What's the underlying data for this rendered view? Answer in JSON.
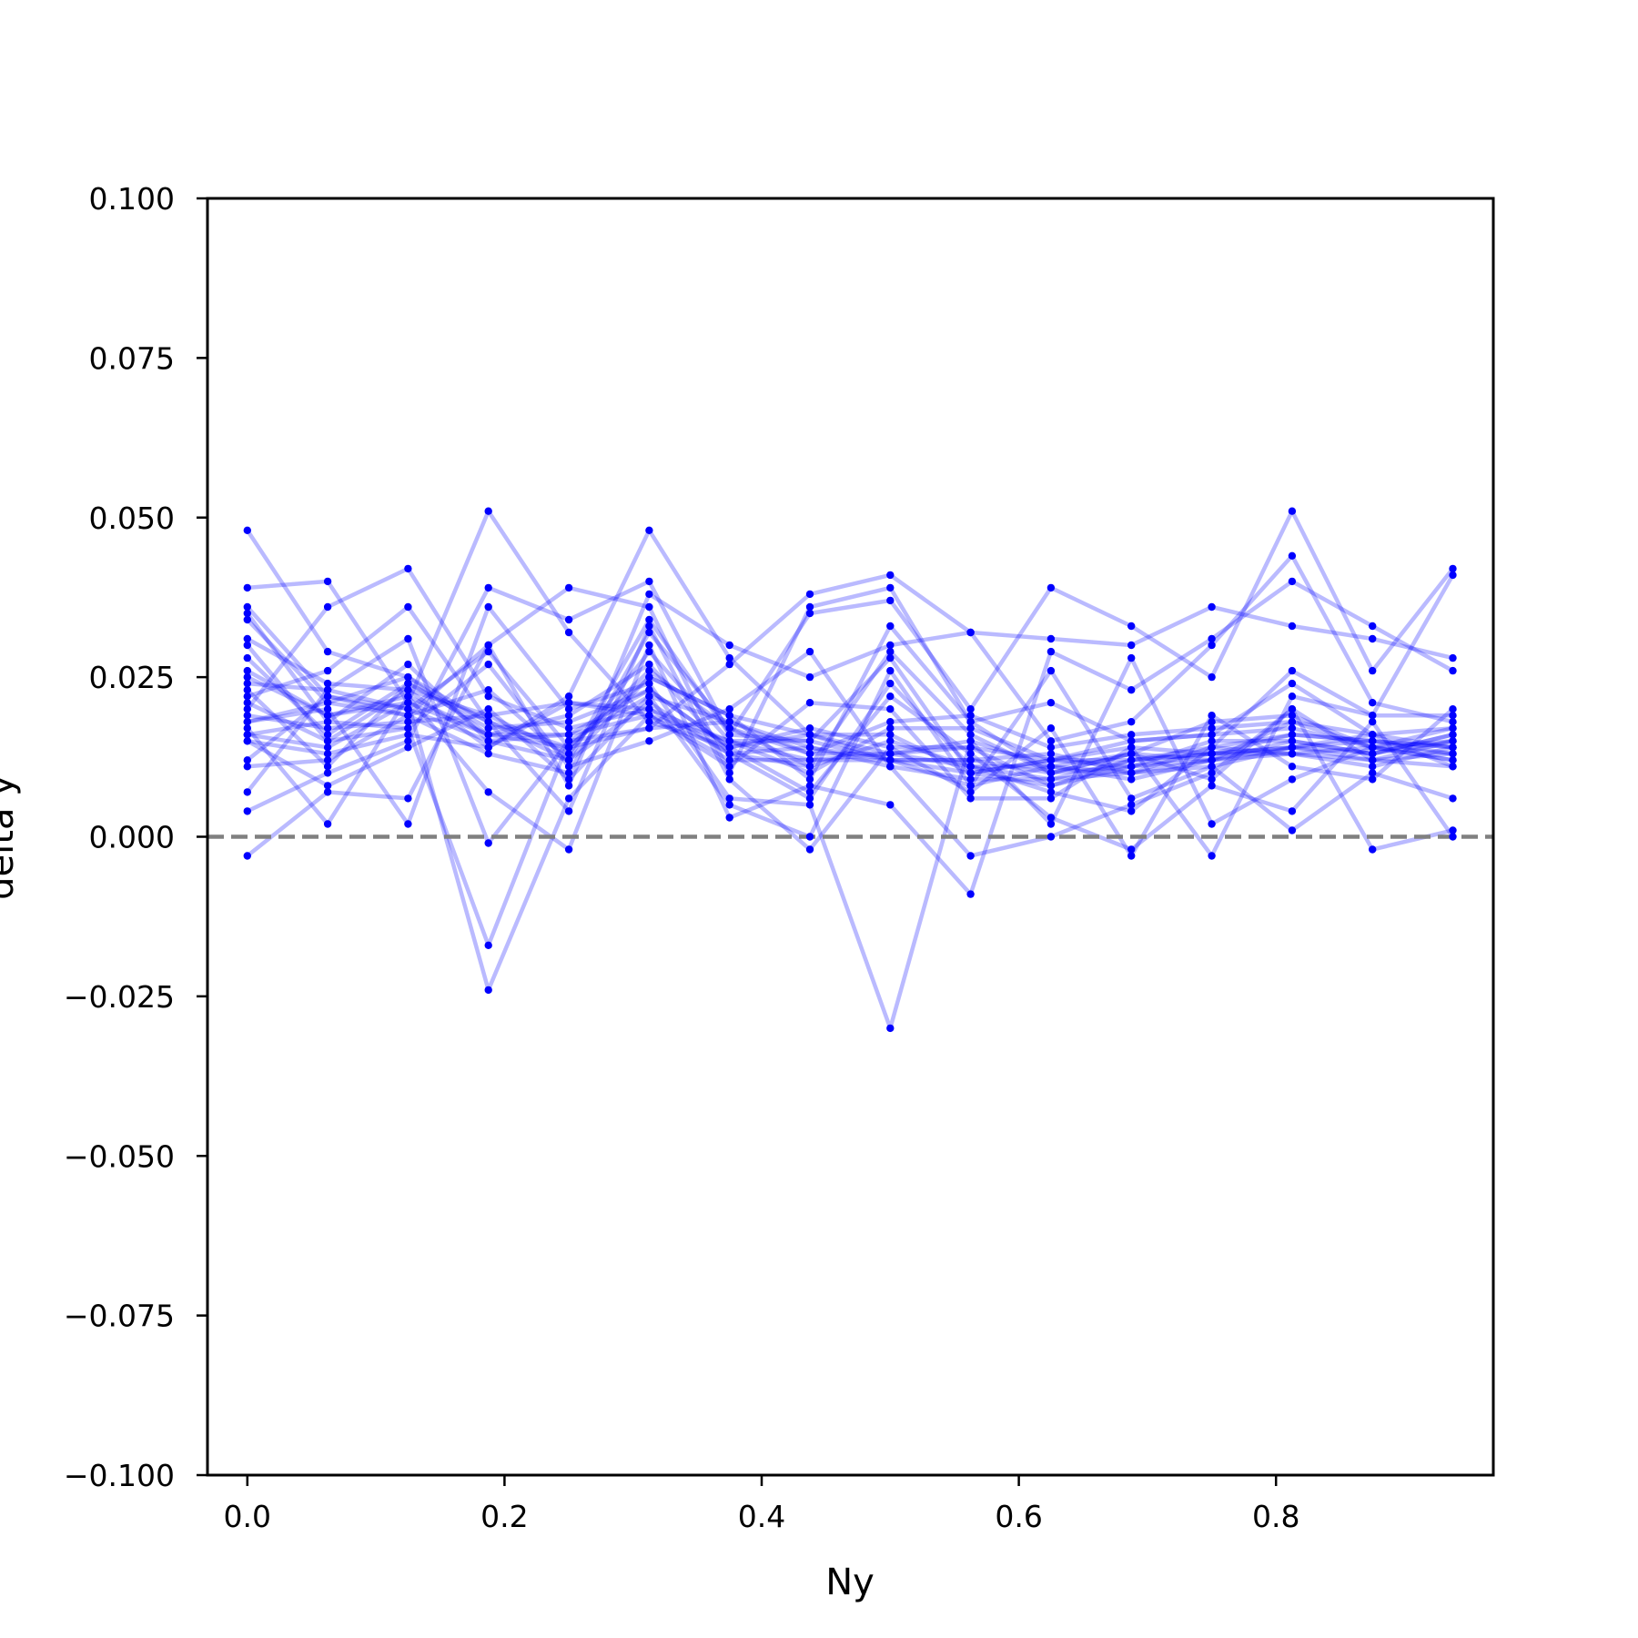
{
  "chart_data": {
    "type": "line",
    "title": "",
    "xlabel": "Ny",
    "ylabel": "delta y",
    "xlim": [
      -0.031,
      0.969
    ],
    "ylim": [
      -0.1,
      0.1
    ],
    "grid": false,
    "legend": "none",
    "x_ticks": [
      0.0,
      0.2,
      0.4,
      0.6,
      0.8
    ],
    "x_tick_labels": [
      "0.0",
      "0.2",
      "0.4",
      "0.6",
      "0.8"
    ],
    "y_ticks": [
      0.1,
      0.075,
      0.05,
      0.025,
      0.0,
      -0.025,
      -0.05,
      -0.075,
      -0.1
    ],
    "y_tick_labels": [
      "0.100",
      "0.075",
      "0.050",
      "0.025",
      "0.000",
      "−0.025",
      "−0.050",
      "−0.075",
      "−0.100"
    ],
    "reference_line": {
      "y": 0.0,
      "style": "dashed",
      "color": "#808080"
    },
    "line_color": "#0000ff",
    "line_opacity": 0.27,
    "marker_color": "#0000ff",
    "x": [
      0.0,
      0.0625,
      0.125,
      0.1875,
      0.25,
      0.3125,
      0.375,
      0.4375,
      0.5,
      0.5625,
      0.625,
      0.6875,
      0.75,
      0.8125,
      0.875,
      0.9375
    ],
    "series": [
      {
        "values": [
          0.048,
          0.029,
          0.025,
          0.018,
          0.012,
          0.034,
          0.016,
          0.015,
          0.012,
          0.01,
          0.008,
          0.012,
          0.014,
          0.016,
          0.015,
          0.013
        ]
      },
      {
        "values": [
          0.039,
          0.04,
          0.021,
          0.016,
          0.019,
          0.027,
          0.013,
          0.011,
          0.015,
          0.011,
          0.009,
          0.012,
          0.013,
          0.014,
          0.016,
          0.014
        ]
      },
      {
        "values": [
          0.036,
          0.022,
          0.02,
          0.029,
          0.014,
          0.025,
          0.019,
          0.016,
          0.013,
          0.015,
          0.011,
          0.013,
          0.018,
          0.019,
          0.014,
          0.015
        ]
      },
      {
        "values": [
          0.035,
          0.018,
          0.017,
          -0.017,
          0.015,
          0.022,
          0.018,
          0.014,
          0.012,
          0.012,
          0.013,
          0.01,
          0.012,
          0.014,
          0.012,
          0.013
        ]
      },
      {
        "values": [
          0.034,
          0.021,
          0.019,
          0.013,
          0.01,
          0.032,
          0.017,
          0.013,
          0.013,
          0.014,
          0.008,
          0.011,
          0.015,
          0.015,
          0.013,
          0.016
        ]
      },
      {
        "values": [
          0.031,
          0.024,
          0.023,
          0.019,
          0.013,
          0.029,
          0.015,
          0.012,
          0.012,
          0.012,
          0.01,
          0.013,
          0.012,
          0.013,
          0.011,
          0.014
        ]
      },
      {
        "values": [
          0.028,
          0.016,
          0.024,
          0.018,
          0.014,
          0.026,
          0.017,
          0.011,
          0.029,
          0.016,
          0.01,
          0.011,
          0.012,
          0.018,
          0.014,
          0.013
        ]
      },
      {
        "values": [
          0.025,
          0.019,
          0.022,
          0.016,
          0.016,
          0.023,
          0.014,
          0.017,
          0.014,
          0.014,
          0.012,
          0.012,
          0.013,
          0.016,
          0.015,
          0.014
        ]
      },
      {
        "values": [
          0.024,
          0.023,
          0.02,
          0.015,
          0.012,
          0.021,
          0.013,
          0.014,
          0.011,
          0.009,
          0.009,
          0.01,
          0.014,
          0.013,
          0.014,
          0.012
        ]
      },
      {
        "values": [
          0.02,
          0.036,
          0.042,
          0.022,
          0.017,
          0.02,
          0.015,
          0.01,
          0.017,
          0.017,
          0.012,
          0.014,
          0.013,
          0.014,
          0.013,
          0.015
        ]
      },
      {
        "values": [
          0.019,
          0.017,
          0.018,
          0.019,
          0.021,
          0.019,
          0.012,
          0.012,
          0.013,
          0.011,
          0.011,
          0.009,
          0.012,
          0.015,
          0.013,
          0.016
        ]
      },
      {
        "values": [
          0.016,
          0.014,
          0.021,
          0.051,
          0.032,
          0.018,
          0.014,
          0.016,
          0.016,
          0.01,
          0.012,
          0.011,
          0.013,
          0.013,
          0.012,
          0.015
        ]
      },
      {
        "values": [
          0.015,
          0.013,
          0.016,
          0.014,
          0.022,
          0.048,
          0.028,
          0.016,
          0.012,
          0.008,
          0.011,
          0.01,
          0.011,
          0.014,
          0.015,
          0.014
        ]
      },
      {
        "values": [
          0.011,
          0.012,
          0.019,
          0.03,
          0.039,
          0.036,
          0.01,
          0.036,
          0.039,
          0.018,
          0.021,
          0.015,
          0.016,
          0.024,
          0.016,
          0.017
        ]
      },
      {
        "values": [
          0.007,
          0.023,
          0.031,
          -0.001,
          0.015,
          0.017,
          0.027,
          0.038,
          0.041,
          0.032,
          0.015,
          0.018,
          0.03,
          0.044,
          0.021,
          0.018
        ]
      },
      {
        "values": [
          0.004,
          0.01,
          0.015,
          0.039,
          0.034,
          0.04,
          0.016,
          0.035,
          0.037,
          0.02,
          0.039,
          0.033,
          0.025,
          0.051,
          0.026,
          0.042
        ]
      },
      {
        "values": [
          -0.003,
          0.007,
          0.006,
          0.03,
          0.008,
          0.038,
          0.03,
          0.025,
          0.03,
          0.032,
          0.031,
          0.03,
          0.036,
          0.033,
          0.031,
          0.028
        ]
      },
      {
        "values": [
          0.017,
          0.002,
          0.022,
          0.007,
          -0.002,
          0.03,
          0.003,
          0.008,
          0.005,
          -0.009,
          0.029,
          0.023,
          0.031,
          0.04,
          0.033,
          0.026
        ]
      },
      {
        "values": [
          0.022,
          0.026,
          0.036,
          0.018,
          0.004,
          0.033,
          0.009,
          -0.002,
          0.014,
          0.007,
          0.017,
          -0.003,
          0.019,
          0.011,
          0.009,
          0.02
        ]
      },
      {
        "values": [
          0.018,
          0.02,
          0.002,
          0.036,
          0.02,
          0.024,
          0.006,
          0.005,
          -0.03,
          0.015,
          0.002,
          0.028,
          0.002,
          0.009,
          0.014,
          0.017
        ]
      },
      {
        "values": [
          0.026,
          0.019,
          0.021,
          -0.024,
          0.006,
          0.019,
          0.011,
          0.021,
          0.02,
          0.006,
          0.006,
          0.014,
          -0.003,
          0.022,
          0.019,
          0.041
        ]
      },
      {
        "values": [
          0.021,
          0.015,
          0.017,
          0.027,
          0.011,
          0.015,
          0.02,
          0.029,
          0.011,
          -0.003,
          0.0,
          0.005,
          0.01,
          0.02,
          -0.002,
          0.001
        ]
      },
      {
        "values": [
          0.023,
          0.011,
          0.024,
          0.017,
          0.018,
          0.023,
          0.014,
          0.007,
          0.022,
          0.013,
          0.003,
          -0.002,
          0.008,
          0.004,
          0.018,
          0.0
        ]
      },
      {
        "values": [
          0.015,
          0.008,
          0.014,
          0.02,
          0.009,
          0.022,
          0.005,
          0.0,
          0.026,
          0.008,
          0.026,
          0.006,
          0.011,
          0.001,
          0.01,
          0.006
        ]
      },
      {
        "values": [
          0.018,
          0.021,
          0.025,
          0.016,
          0.014,
          0.017,
          0.018,
          0.013,
          0.018,
          0.019,
          0.014,
          0.016,
          0.017,
          0.018,
          0.016,
          0.011
        ]
      },
      {
        "values": [
          0.03,
          0.015,
          0.023,
          0.014,
          0.021,
          0.02,
          0.013,
          0.006,
          0.024,
          0.011,
          0.007,
          0.004,
          0.014,
          0.026,
          0.019,
          0.019
        ]
      },
      {
        "values": [
          0.012,
          0.022,
          0.019,
          0.023,
          0.012,
          0.025,
          0.019,
          0.009,
          0.033,
          0.018,
          0.01,
          0.013,
          0.009,
          0.02,
          0.012,
          0.011
        ]
      },
      {
        "values": [
          0.016,
          0.018,
          0.027,
          0.015,
          0.016,
          0.019,
          0.015,
          0.015,
          0.028,
          0.01,
          0.012,
          0.015,
          0.016,
          0.017,
          0.014,
          0.012
        ]
      }
    ]
  }
}
